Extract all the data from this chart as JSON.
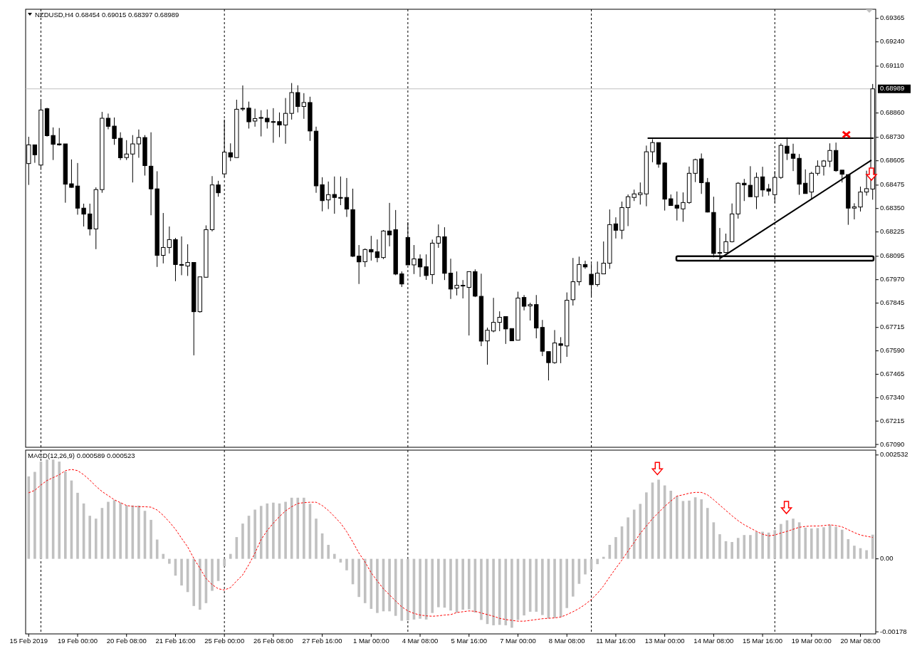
{
  "chart_data": [
    {
      "type": "candlestick",
      "title": "NZDUSD,H4 0.68454 0.69015 0.68397 0.68989",
      "tick_labels": "y",
      "categories": [
        null,
        null,
        null,
        null,
        null,
        null,
        null,
        null,
        null,
        null,
        null,
        null,
        null,
        null,
        null,
        null,
        null,
        null,
        null,
        null,
        null,
        null,
        null,
        null,
        null,
        null,
        null,
        null,
        null,
        null,
        null,
        null,
        null,
        null,
        null,
        null,
        null,
        null,
        null,
        null,
        null,
        null,
        null,
        null,
        null,
        null,
        null,
        null,
        null,
        null,
        null,
        null,
        null,
        null,
        null,
        null,
        null,
        null,
        null,
        null,
        null,
        null,
        null,
        null,
        null,
        null,
        null,
        null,
        null,
        null,
        null,
        null,
        null,
        null,
        null,
        null,
        null,
        null,
        null,
        null,
        null,
        null,
        null,
        null,
        null,
        null,
        null,
        null,
        null,
        null,
        null,
        null,
        null,
        null,
        null,
        null,
        null,
        null,
        null,
        null,
        null,
        null,
        null,
        null,
        null,
        null,
        null,
        null,
        null,
        null,
        null,
        null,
        null,
        null,
        null,
        null,
        null,
        null,
        null,
        null,
        null,
        null,
        null,
        null,
        null,
        null,
        null,
        null,
        null,
        null,
        null,
        null,
        null,
        null,
        null,
        null,
        null,
        null,
        null
      ],
      "ohlc": [
        [
          0.6859,
          0.68733,
          0.68476,
          0.6869
        ],
        [
          0.6869,
          0.6869,
          0.68594,
          0.68637
        ],
        [
          0.68582,
          0.68927,
          0.68556,
          0.68876
        ],
        [
          0.68883,
          0.68888,
          0.68734,
          0.68739
        ],
        [
          0.6874,
          0.68783,
          0.68609,
          0.68693
        ],
        [
          0.68695,
          0.6878,
          0.68686,
          0.6869
        ],
        [
          0.68695,
          0.68695,
          0.68381,
          0.6848
        ],
        [
          0.68482,
          0.68612,
          0.68461,
          0.68463
        ],
        [
          0.6847,
          0.68593,
          0.68317,
          0.68352
        ],
        [
          0.68352,
          0.68376,
          0.68254,
          0.6832
        ],
        [
          0.68321,
          0.68376,
          0.68206,
          0.68241
        ],
        [
          0.68241,
          0.68463,
          0.68133,
          0.68451
        ],
        [
          0.68451,
          0.68866,
          0.68434,
          0.68832
        ],
        [
          0.68832,
          0.68857,
          0.68773,
          0.68789
        ],
        [
          0.6879,
          0.68836,
          0.6869,
          0.68724
        ],
        [
          0.68725,
          0.68757,
          0.68609,
          0.68621
        ],
        [
          0.68622,
          0.68715,
          0.68609,
          0.68641
        ],
        [
          0.68641,
          0.68742,
          0.68489,
          0.68695
        ],
        [
          0.68695,
          0.68772,
          0.68621,
          0.68729
        ],
        [
          0.68729,
          0.68742,
          0.68526,
          0.68579
        ],
        [
          0.68576,
          0.68757,
          0.68314,
          0.68455
        ],
        [
          0.68455,
          0.68549,
          0.68038,
          0.681
        ],
        [
          0.681,
          0.68326,
          0.68057,
          0.68142
        ],
        [
          0.68142,
          0.68254,
          0.6811,
          0.68184
        ],
        [
          0.68184,
          0.68193,
          0.67962,
          0.68051
        ],
        [
          0.68051,
          0.68201,
          0.67994,
          0.68047
        ],
        [
          0.68043,
          0.68159,
          0.6799,
          0.68062
        ],
        [
          0.68062,
          0.68062,
          0.67566,
          0.67799
        ],
        [
          0.67799,
          0.67985,
          0.67794,
          0.67985
        ],
        [
          0.67983,
          0.6826,
          0.67981,
          0.68237
        ],
        [
          0.68237,
          0.68523,
          0.68228,
          0.68476
        ],
        [
          0.68476,
          0.68498,
          0.68413,
          0.68434
        ],
        [
          0.68535,
          0.68825,
          0.68521,
          0.68651
        ],
        [
          0.68648,
          0.68698,
          0.68603,
          0.68625
        ],
        [
          0.68622,
          0.68931,
          0.68622,
          0.6888
        ],
        [
          0.68885,
          0.69007,
          0.6887,
          0.68883
        ],
        [
          0.68886,
          0.68921,
          0.68777,
          0.68813
        ],
        [
          0.68817,
          0.68883,
          0.68787,
          0.6883
        ],
        [
          0.68836,
          0.68875,
          0.68735,
          0.68832
        ],
        [
          0.68832,
          0.68879,
          0.68777,
          0.68813
        ],
        [
          0.68814,
          0.68886,
          0.68701,
          0.68813
        ],
        [
          0.68814,
          0.68863,
          0.68731,
          0.68796
        ],
        [
          0.68796,
          0.6894,
          0.68696,
          0.68858
        ],
        [
          0.68858,
          0.6902,
          0.68825,
          0.68969
        ],
        [
          0.68969,
          0.69008,
          0.68863,
          0.68895
        ],
        [
          0.68895,
          0.68966,
          0.68829,
          0.68916
        ],
        [
          0.68916,
          0.68947,
          0.68711,
          0.68764
        ],
        [
          0.68763,
          0.68787,
          0.68434,
          0.68471
        ],
        [
          0.68477,
          0.68517,
          0.68335,
          0.68392
        ],
        [
          0.68396,
          0.68494,
          0.68347,
          0.68424
        ],
        [
          0.68425,
          0.68521,
          0.68322,
          0.68409
        ],
        [
          0.68409,
          0.68521,
          0.68368,
          0.68408
        ],
        [
          0.68409,
          0.68513,
          0.68305,
          0.68347
        ],
        [
          0.68344,
          0.68456,
          0.68091,
          0.68095
        ],
        [
          0.68096,
          0.68155,
          0.67947,
          0.68065
        ],
        [
          0.68066,
          0.68137,
          0.68038,
          0.68131
        ],
        [
          0.68131,
          0.68204,
          0.68072,
          0.68118
        ],
        [
          0.68119,
          0.68185,
          0.68063,
          0.68088
        ],
        [
          0.68088,
          0.68235,
          0.6808,
          0.6823
        ],
        [
          0.6823,
          0.6838,
          0.68148,
          0.68209
        ],
        [
          0.68237,
          0.68342,
          0.67994,
          0.68
        ],
        [
          0.68001,
          0.68014,
          0.67931,
          0.67947
        ],
        [
          0.68195,
          0.68277,
          0.68049,
          0.68049
        ],
        [
          0.68049,
          0.68155,
          0.68,
          0.68081
        ],
        [
          0.68081,
          0.68105,
          0.67985,
          0.68038
        ],
        [
          0.68039,
          0.68105,
          0.67969,
          0.67992
        ],
        [
          0.67997,
          0.68184,
          0.67947,
          0.68165
        ],
        [
          0.68165,
          0.68265,
          0.6814,
          0.68199
        ],
        [
          0.68199,
          0.6825,
          0.67968,
          0.68004
        ],
        [
          0.68005,
          0.68082,
          0.67867,
          0.6792
        ],
        [
          0.67925,
          0.68014,
          0.67886,
          0.6794
        ],
        [
          0.6794,
          0.67968,
          0.6787,
          0.67939
        ],
        [
          0.67929,
          0.68013,
          0.67672,
          0.68013
        ],
        [
          0.68013,
          0.68025,
          0.67877,
          0.67882
        ],
        [
          0.67881,
          0.68002,
          0.67615,
          0.67642
        ],
        [
          0.67643,
          0.67714,
          0.67516,
          0.677
        ],
        [
          0.67696,
          0.67873,
          0.67689,
          0.67742
        ],
        [
          0.67742,
          0.67801,
          0.67695,
          0.67769
        ],
        [
          0.67773,
          0.67773,
          0.67627,
          0.67707
        ],
        [
          0.67709,
          0.67709,
          0.67642,
          0.67644
        ],
        [
          0.67647,
          0.67906,
          0.67647,
          0.67872
        ],
        [
          0.67875,
          0.67888,
          0.67806,
          0.67828
        ],
        [
          0.6783,
          0.67847,
          0.67752,
          0.67837
        ],
        [
          0.67837,
          0.67888,
          0.67657,
          0.67712
        ],
        [
          0.67715,
          0.67755,
          0.67562,
          0.67588
        ],
        [
          0.67586,
          0.67586,
          0.67432,
          0.67527
        ],
        [
          0.67527,
          0.67701,
          0.67521,
          0.67632
        ],
        [
          0.67628,
          0.67663,
          0.67524,
          0.67619
        ],
        [
          0.67616,
          0.67902,
          0.67558,
          0.6786
        ],
        [
          0.67863,
          0.68086,
          0.67832,
          0.67959
        ],
        [
          0.67959,
          0.68093,
          0.67939,
          0.68051
        ],
        [
          0.68051,
          0.68071,
          0.68028,
          0.68038
        ],
        [
          0.67999,
          0.68055,
          0.67879,
          0.67943
        ],
        [
          0.67944,
          0.68067,
          0.67933,
          0.68005
        ],
        [
          0.68001,
          0.68174,
          0.68001,
          0.68058
        ],
        [
          0.68058,
          0.68345,
          0.68028,
          0.68264
        ],
        [
          0.68268,
          0.68303,
          0.6819,
          0.68234
        ],
        [
          0.68234,
          0.68387,
          0.68187,
          0.68355
        ],
        [
          0.68355,
          0.68425,
          0.68256,
          0.68413
        ],
        [
          0.68409,
          0.68451,
          0.6839,
          0.68428
        ],
        [
          0.68424,
          0.68489,
          0.68371,
          0.68433
        ],
        [
          0.68428,
          0.68686,
          0.68362,
          0.68653
        ],
        [
          0.68653,
          0.6872,
          0.68597,
          0.68702
        ],
        [
          0.68702,
          0.68702,
          0.68568,
          0.68587
        ],
        [
          0.68593,
          0.68597,
          0.68339,
          0.684
        ],
        [
          0.68402,
          0.68425,
          0.68366,
          0.68366
        ],
        [
          0.68368,
          0.68441,
          0.68286,
          0.68352
        ],
        [
          0.68348,
          0.68436,
          0.68279,
          0.68382
        ],
        [
          0.68382,
          0.68574,
          0.68375,
          0.68538
        ],
        [
          0.68538,
          0.68616,
          0.68491,
          0.68611
        ],
        [
          0.68615,
          0.68644,
          0.68428,
          0.68488
        ],
        [
          0.68489,
          0.68513,
          0.68329,
          0.68331
        ],
        [
          0.68329,
          0.68413,
          0.68089,
          0.6811
        ],
        [
          0.68115,
          0.68246,
          0.68074,
          0.68112
        ],
        [
          0.68115,
          0.68216,
          0.68112,
          0.68173
        ],
        [
          0.68173,
          0.68377,
          0.68169,
          0.68321
        ],
        [
          0.68321,
          0.68491,
          0.68296,
          0.68485
        ],
        [
          0.68485,
          0.68508,
          0.6839,
          0.68476
        ],
        [
          0.68474,
          0.68576,
          0.68413,
          0.68413
        ],
        [
          0.68413,
          0.68542,
          0.68347,
          0.68516
        ],
        [
          0.68519,
          0.68573,
          0.68413,
          0.68449
        ],
        [
          0.68455,
          0.68481,
          0.68419,
          0.68443
        ],
        [
          0.68424,
          0.6855,
          0.68381,
          0.68516
        ],
        [
          0.68516,
          0.68698,
          0.68508,
          0.68687
        ],
        [
          0.68683,
          0.6873,
          0.68609,
          0.68645
        ],
        [
          0.68641,
          0.68696,
          0.6855,
          0.68618
        ],
        [
          0.68618,
          0.68641,
          0.68423,
          0.6848
        ],
        [
          0.68485,
          0.68559,
          0.6843,
          0.6843
        ],
        [
          0.68438,
          0.68546,
          0.68399,
          0.68538
        ],
        [
          0.68538,
          0.68607,
          0.68526,
          0.68576
        ],
        [
          0.68576,
          0.68609,
          0.68526,
          0.68604
        ],
        [
          0.68603,
          0.68698,
          0.68571,
          0.6866
        ],
        [
          0.6866,
          0.68702,
          0.68546,
          0.68552
        ],
        [
          0.68555,
          0.68555,
          0.68489,
          0.68533
        ],
        [
          0.68531,
          0.68531,
          0.68263,
          0.68352
        ],
        [
          0.68352,
          0.68378,
          0.68292,
          0.68359
        ],
        [
          0.68358,
          0.68467,
          0.68334,
          0.68438
        ],
        [
          0.68438,
          0.68552,
          0.68419,
          0.68456
        ],
        [
          0.68454,
          0.69015,
          0.68397,
          0.68989
        ]
      ],
      "ylim": [
        0.67075,
        0.69414
      ],
      "yticks": [
        {
          "value": 0.69365,
          "label": "0.69365"
        },
        {
          "value": 0.6924,
          "label": "0.69240"
        },
        {
          "value": 0.6911,
          "label": "0.69110"
        },
        {
          "value": 0.6886,
          "label": "0.68860"
        },
        {
          "value": 0.6873,
          "label": "0.68730"
        },
        {
          "value": 0.68605,
          "label": "0.68605"
        },
        {
          "value": 0.68475,
          "label": "0.68475"
        },
        {
          "value": 0.6835,
          "label": "0.68350"
        },
        {
          "value": 0.68225,
          "label": "0.68225"
        },
        {
          "value": 0.68095,
          "label": "0.68095"
        },
        {
          "value": 0.6797,
          "label": "0.67970"
        },
        {
          "value": 0.67845,
          "label": "0.67845"
        },
        {
          "value": 0.67715,
          "label": "0.67715"
        },
        {
          "value": 0.6759,
          "label": "0.67590"
        },
        {
          "value": 0.67465,
          "label": "0.67465"
        },
        {
          "value": 0.6734,
          "label": "0.67340"
        },
        {
          "value": 0.67215,
          "label": "0.67215"
        },
        {
          "value": 0.6709,
          "label": "0.67090"
        }
      ],
      "ref_lines": [
        {
          "axis": "y",
          "value": 0.68989,
          "label": "0.68989",
          "color": "#c0c0c0"
        }
      ]
    },
    {
      "type": "bar",
      "title": "MACD(12,26,9) 0.000589 0.000523",
      "categories": [
        "15 Feb 2019",
        null,
        null,
        null,
        null,
        null,
        null,
        null,
        "19 Feb 00:00",
        null,
        null,
        null,
        null,
        null,
        null,
        null,
        "20 Feb 08:00",
        null,
        null,
        null,
        null,
        null,
        null,
        null,
        "21 Feb 16:00",
        null,
        null,
        null,
        null,
        null,
        null,
        null,
        "25 Feb 00:00",
        null,
        null,
        null,
        null,
        null,
        null,
        null,
        "26 Feb 08:00",
        null,
        null,
        null,
        null,
        null,
        null,
        null,
        "27 Feb 16:00",
        null,
        null,
        null,
        null,
        null,
        null,
        null,
        "1 Mar 00:00",
        null,
        null,
        null,
        null,
        null,
        null,
        null,
        "4 Mar 08:00",
        null,
        null,
        null,
        null,
        null,
        null,
        null,
        "5 Mar 16:00",
        null,
        null,
        null,
        null,
        null,
        null,
        null,
        "7 Mar 00:00",
        null,
        null,
        null,
        null,
        null,
        null,
        null,
        "8 Mar 08:00",
        null,
        null,
        null,
        null,
        null,
        null,
        null,
        "11 Mar 16:00",
        null,
        null,
        null,
        null,
        null,
        null,
        null,
        "13 Mar 00:00",
        null,
        null,
        null,
        null,
        null,
        null,
        null,
        "14 Mar 08:00",
        null,
        null,
        null,
        null,
        null,
        null,
        null,
        "15 Mar 16:00",
        null,
        null,
        null,
        null,
        null,
        null,
        null,
        "19 Mar 00:00",
        null,
        null,
        null,
        null,
        null,
        null,
        null,
        "20 Mar 08:00",
        null,
        null
      ],
      "series": [
        {
          "type": "bar",
          "color": "#c0c0c0",
          "values": [
            0.00201,
            0.00212,
            0.00237,
            0.00242,
            0.00242,
            0.00237,
            0.00213,
            0.00191,
            0.00161,
            0.00135,
            0.00105,
            0.00098,
            0.00124,
            0.00139,
            0.00143,
            0.00137,
            0.0013,
            0.0013,
            0.0013,
            0.00117,
            0.00095,
            0.00047,
            0.00012,
            -0.00012,
            -0.00041,
            -0.00065,
            -0.00081,
            -0.00115,
            -0.00124,
            -0.00108,
            -0.00078,
            -0.00054,
            -0.00018,
            0.00012,
            0.00053,
            0.00086,
            0.00105,
            0.0012,
            0.00129,
            0.00135,
            0.00137,
            0.00135,
            0.00139,
            0.00149,
            0.00149,
            0.00149,
            0.00134,
            0.00098,
            0.00062,
            0.00034,
            0.00012,
            -9e-05,
            -0.00028,
            -0.00062,
            -0.00093,
            -0.00108,
            -0.00122,
            -0.00132,
            -0.00128,
            -0.00128,
            -0.00139,
            -0.00151,
            -0.0015,
            -0.00148,
            -0.00146,
            -0.00148,
            -0.00132,
            -0.00118,
            -0.00119,
            -0.00126,
            -0.00131,
            -0.00124,
            -0.00123,
            -0.00131,
            -0.00149,
            -0.00159,
            -0.00162,
            -0.00161,
            -0.00162,
            -0.00168,
            -0.00149,
            -0.00138,
            -0.00129,
            -0.00129,
            -0.00137,
            -0.00145,
            -0.00144,
            -0.00142,
            -0.0012,
            -0.00092,
            -0.00061,
            -0.00038,
            -0.00027,
            -0.00013,
            5e-05,
            0.00034,
            0.00053,
            0.00079,
            0.00101,
            0.0012,
            0.00134,
            0.00162,
            0.00186,
            0.00193,
            0.00179,
            0.00166,
            0.00153,
            0.00141,
            0.00142,
            0.0015,
            0.00145,
            0.00124,
            0.00089,
            0.0006,
            0.00043,
            0.00041,
            0.00051,
            0.00058,
            0.00058,
            0.00066,
            0.00066,
            0.00064,
            0.0007,
            0.00085,
            0.00094,
            0.00098,
            0.00089,
            0.00076,
            0.00074,
            0.00075,
            0.00077,
            0.00083,
            0.00078,
            0.00071,
            0.00048,
            0.00032,
            0.00026,
            0.00021,
            0.000589
          ]
        },
        {
          "type": "line",
          "color": "#ff0000",
          "line_style": "dashed",
          "values": [
            0.00161,
            0.00167,
            0.0018,
            0.00191,
            0.00198,
            0.00205,
            0.00215,
            0.00218,
            0.00215,
            0.00205,
            0.00192,
            0.00177,
            0.00164,
            0.00154,
            0.00144,
            0.00137,
            0.0013,
            0.00128,
            0.00127,
            0.00127,
            0.00126,
            0.00119,
            0.00106,
            0.0009,
            0.00072,
            0.0005,
            0.00029,
            1e-05,
            -0.00023,
            -0.00048,
            -0.00063,
            -0.00073,
            -0.00076,
            -0.0007,
            -0.00054,
            -0.00039,
            -0.00014,
            0.00014,
            0.00047,
            0.00069,
            0.00087,
            0.00103,
            0.00117,
            0.00127,
            0.00135,
            0.00137,
            0.00138,
            0.00138,
            0.0013,
            0.00118,
            0.00103,
            0.00087,
            0.00066,
            0.00041,
            0.00014,
            -8e-05,
            -0.00034,
            -0.00054,
            -0.00073,
            -0.00088,
            -0.00103,
            -0.00117,
            -0.00127,
            -0.00133,
            -0.00137,
            -0.00139,
            -0.0014,
            -0.00139,
            -0.00137,
            -0.00136,
            -0.00131,
            -0.00129,
            -0.00127,
            -0.00128,
            -0.00132,
            -0.00136,
            -0.0014,
            -0.00145,
            -0.00148,
            -0.0015,
            -0.00152,
            -0.00152,
            -0.0015,
            -0.00148,
            -0.00146,
            -0.00145,
            -0.00144,
            -0.00142,
            -0.00136,
            -0.00129,
            -0.00121,
            -0.00111,
            -0.00099,
            -0.00084,
            -0.00066,
            -0.00044,
            -0.00023,
            -3e-05,
            0.00019,
            0.0004,
            0.00062,
            0.0008,
            0.00098,
            0.00113,
            0.00128,
            0.00141,
            0.00153,
            0.00156,
            0.0016,
            0.00162,
            0.00162,
            0.00156,
            0.00144,
            0.00131,
            0.00118,
            0.00105,
            0.00093,
            0.00083,
            0.00075,
            0.00067,
            0.0006,
            0.00056,
            0.00058,
            0.00063,
            0.00067,
            0.00072,
            0.00077,
            0.00079,
            0.0008,
            0.0008,
            0.00081,
            0.00083,
            0.00081,
            0.00078,
            0.00071,
            0.00064,
            0.00058,
            0.00055,
            0.000523
          ]
        }
      ],
      "ylim": [
        -0.00183,
        0.00265
      ],
      "yticks": [
        {
          "value": 0.002532,
          "label": "0.002532"
        },
        {
          "value": 0,
          "label": "0.00"
        },
        {
          "value": -0.00178,
          "label": "-0.00178"
        }
      ]
    }
  ]
}
